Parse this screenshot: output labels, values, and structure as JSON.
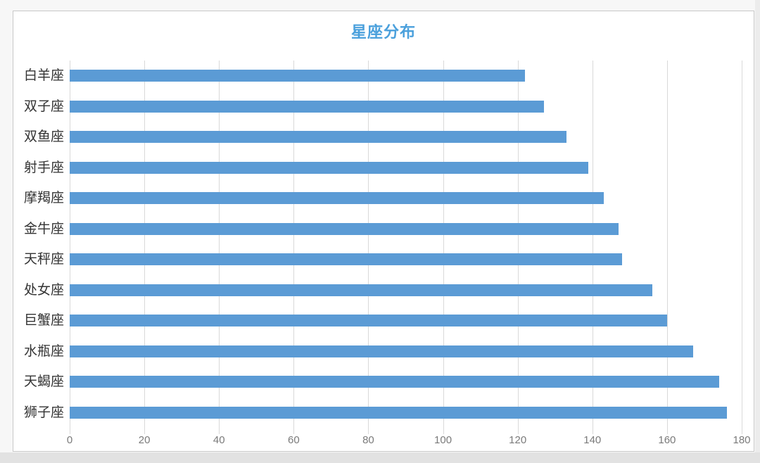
{
  "page": {
    "background_color": "#f7f7f7",
    "bottom_strip_color": "#e2e2e2",
    "chart_background": "#ffffff",
    "chart_border_color": "#c8c8c8"
  },
  "chart": {
    "title_color": "#4aa0dc",
    "bar_color": "#5b9bd5",
    "gridline_color": "#d9d9d9",
    "x_tick_label_color": "#7a7a7a",
    "category_label_color": "#333333"
  },
  "chart_data": {
    "type": "bar",
    "orientation": "horizontal",
    "title": "星座分布",
    "categories": [
      "白羊座",
      "双子座",
      "双鱼座",
      "射手座",
      "摩羯座",
      "金牛座",
      "天秤座",
      "处女座",
      "巨蟹座",
      "水瓶座",
      "天蝎座",
      "狮子座"
    ],
    "values": [
      122,
      127,
      133,
      139,
      143,
      147,
      148,
      156,
      160,
      167,
      174,
      176
    ],
    "xlabel": "",
    "ylabel": "",
    "xlim": [
      0,
      180
    ],
    "x_ticks": [
      0,
      20,
      40,
      60,
      80,
      100,
      120,
      140,
      160,
      180
    ],
    "grid": true,
    "legend": false
  }
}
